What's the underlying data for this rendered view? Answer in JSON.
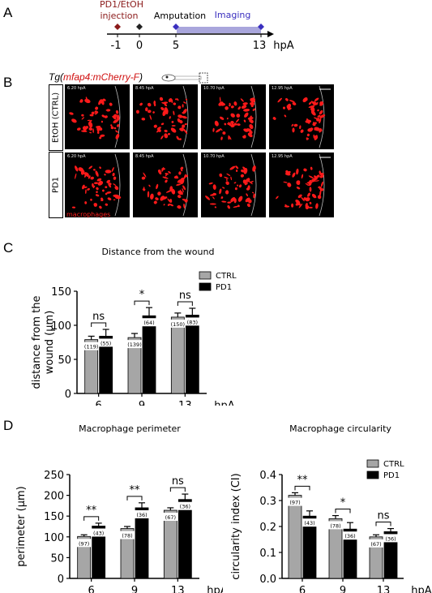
{
  "panels": {
    "A": {
      "letter": "A",
      "treatment_label_line1": "PD1/EtOH",
      "treatment_label_line2": "injection",
      "amputation_label": "Amputation",
      "imaging_label": "Imaging",
      "ticks": [
        "-1",
        "0",
        "5",
        "13"
      ],
      "unit": "hpA",
      "colors": {
        "treatment": "#8b1a1a",
        "imaging": "#3a2fbf",
        "imaging_bar": "#a9a6dc"
      }
    },
    "B": {
      "letter": "B",
      "transgene_prefix": "Tg(",
      "transgene_name": "mfap4:mCherry-F",
      "transgene_suffix": ")",
      "rows": [
        {
          "label": "EtOH (CTRL)",
          "times": [
            "6.20 hpA",
            "8.45 hpA",
            "10.70 hpA",
            "12.95 hpA"
          ]
        },
        {
          "label": "PD1",
          "times": [
            "6.20 hpA",
            "8.45 hpA",
            "10.70 hpA",
            "12.95 hpA"
          ]
        }
      ],
      "legend_text": "macrophages",
      "colors": {
        "signal": "#ff1a1a"
      }
    },
    "C": {
      "letter": "C"
    },
    "D": {
      "letter": "D"
    }
  },
  "chart_data": [
    {
      "type": "bar",
      "title": "Distance from the wound",
      "ylabel": "distance from the wound (µm)",
      "xunit": "hpA",
      "categories": [
        "6",
        "9",
        "13"
      ],
      "ylim": [
        0,
        150
      ],
      "yticks": [
        "0",
        "50",
        "100",
        "150"
      ],
      "series": [
        {
          "name": "CTRL",
          "color": "#a6a6a6",
          "values": [
            79,
            82,
            112
          ],
          "errors": [
            5,
            6,
            6
          ],
          "n": [
            "(119)",
            "(139)",
            "(150)"
          ]
        },
        {
          "name": "PD1",
          "color": "#000000",
          "values": [
            84,
            114,
            115
          ],
          "errors": [
            10,
            12,
            10
          ],
          "n": [
            "(55)",
            "(64)",
            "(83)"
          ]
        }
      ],
      "significance": [
        "ns",
        "*",
        "ns"
      ],
      "legend": "top-right"
    },
    {
      "type": "bar",
      "title": "Macrophage perimeter",
      "ylabel": "perimeter (µm)",
      "xunit": "hpA",
      "categories": [
        "6",
        "9",
        "13"
      ],
      "ylim": [
        0,
        250
      ],
      "yticks": [
        "0",
        "50",
        "100",
        "150",
        "200",
        "250"
      ],
      "series": [
        {
          "name": "CTRL",
          "color": "#a6a6a6",
          "values": [
            101,
            120,
            164
          ],
          "errors": [
            4,
            5,
            6
          ],
          "n": [
            "(97)",
            "(78)",
            "(67)"
          ]
        },
        {
          "name": "PD1",
          "color": "#000000",
          "values": [
            126,
            170,
            190
          ],
          "errors": [
            7,
            12,
            13
          ],
          "n": [
            "(43)",
            "(36)",
            "(36)"
          ]
        }
      ],
      "significance": [
        "**",
        "**",
        "ns"
      ]
    },
    {
      "type": "bar",
      "title": "Macrophage circularity",
      "ylabel": "circularity index (CI)",
      "xunit": "hpA",
      "categories": [
        "6",
        "9",
        "13"
      ],
      "ylim": [
        0,
        0.4
      ],
      "yticks": [
        "0.0",
        "0.1",
        "0.2",
        "0.3",
        "0.4"
      ],
      "series": [
        {
          "name": "CTRL",
          "color": "#a6a6a6",
          "values": [
            0.32,
            0.23,
            0.16
          ],
          "errors": [
            0.01,
            0.012,
            0.008
          ],
          "n": [
            "(97)",
            "(78)",
            "(67)"
          ]
        },
        {
          "name": "PD1",
          "color": "#000000",
          "values": [
            0.24,
            0.19,
            0.18
          ],
          "errors": [
            0.02,
            0.025,
            0.012
          ],
          "n": [
            "(43)",
            "(36)",
            "(36)"
          ]
        }
      ],
      "significance": [
        "**",
        "*",
        "ns"
      ],
      "legend": "top-right"
    }
  ]
}
